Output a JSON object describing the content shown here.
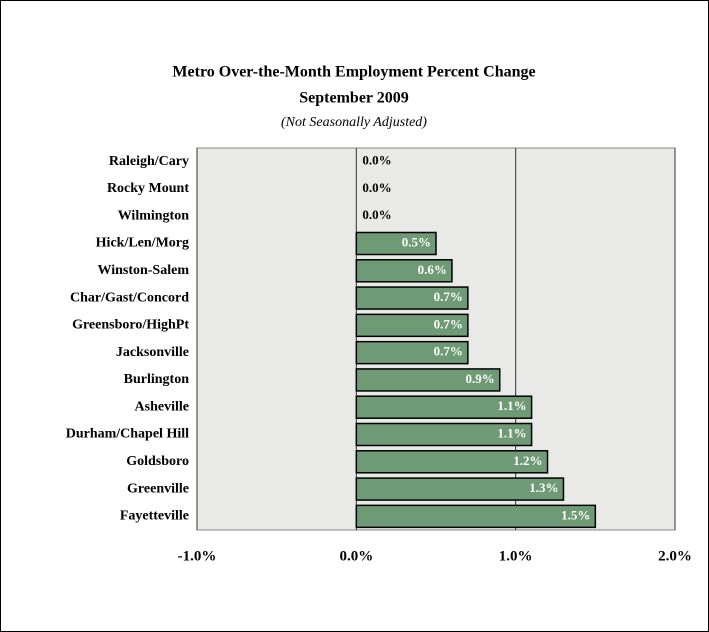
{
  "chart_data": {
    "type": "bar",
    "orientation": "horizontal",
    "title": "Metro Over-the-Month Employment Percent Change",
    "subtitle": "September 2009",
    "note": "(Not Seasonally Adjusted)",
    "categories": [
      "Raleigh/Cary",
      "Rocky Mount",
      "Wilmington",
      "Hick/Len/Morg",
      "Winston-Salem",
      "Char/Gast/Concord",
      "Greensboro/HighPt",
      "Jacksonville",
      "Burlington",
      "Asheville",
      "Durham/Chapel Hill",
      "Goldsboro",
      "Greenville",
      "Fayetteville"
    ],
    "values": [
      0.0,
      0.0,
      0.0,
      0.5,
      0.6,
      0.7,
      0.7,
      0.7,
      0.9,
      1.1,
      1.1,
      1.2,
      1.3,
      1.5
    ],
    "value_labels": [
      "0.0%",
      "0.0%",
      "0.0%",
      "0.5%",
      "0.6%",
      "0.7%",
      "0.7%",
      "0.7%",
      "0.9%",
      "1.1%",
      "1.1%",
      "1.2%",
      "1.3%",
      "1.5%"
    ],
    "color": "#6f9a76",
    "xlim": [
      -1,
      2
    ],
    "xticks": [
      {
        "value": -1,
        "label": "-1.0%"
      },
      {
        "value": 0,
        "label": "0.0%"
      },
      {
        "value": 1,
        "label": "1.0%"
      },
      {
        "value": 2,
        "label": "2.0%"
      }
    ],
    "grid": true
  }
}
